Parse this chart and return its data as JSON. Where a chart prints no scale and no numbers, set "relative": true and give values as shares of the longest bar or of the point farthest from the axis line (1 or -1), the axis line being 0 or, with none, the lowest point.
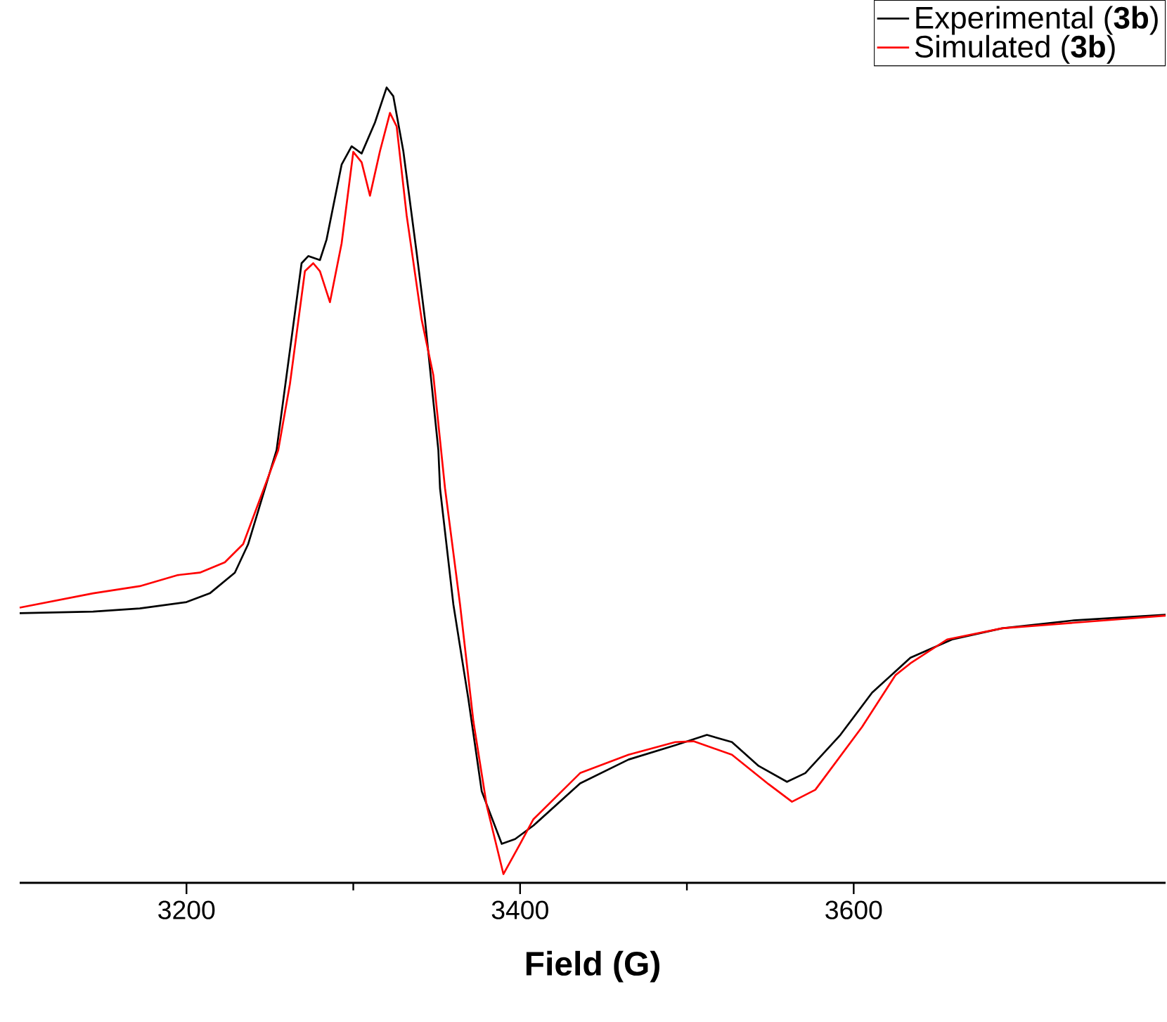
{
  "chart_data": {
    "type": "line",
    "relative": true,
    "xlabel": "Field (G)",
    "xlim": [
      3100,
      3787
    ],
    "xticks": [
      3200,
      3400,
      3600
    ],
    "grid": false,
    "legend": "top right",
    "marker": "none",
    "line_style": "solid",
    "series": [
      {
        "name": "Experimental (**3b**)",
        "color": "#000000",
        "x": [
          3100,
          3144,
          3172,
          3200,
          3214,
          3229,
          3237,
          3254,
          3269,
          3273,
          3280,
          3284,
          3293,
          3299,
          3305,
          3313,
          3320,
          3324,
          3330,
          3338,
          3343,
          3351,
          3352,
          3360,
          3369,
          3377,
          3389,
          3397,
          3408,
          3436,
          3465,
          3493,
          3512,
          3527,
          3543,
          3560,
          3571,
          3592,
          3611,
          3634,
          3659,
          3689,
          3732,
          3787
        ],
        "values": [
          0.339,
          0.341,
          0.345,
          0.353,
          0.364,
          0.39,
          0.426,
          0.544,
          0.779,
          0.788,
          0.783,
          0.809,
          0.903,
          0.926,
          0.917,
          0.956,
          1,
          0.989,
          0.92,
          0.792,
          0.708,
          0.544,
          0.496,
          0.35,
          0.231,
          0.115,
          0.049,
          0.055,
          0.072,
          0.125,
          0.155,
          0.173,
          0.186,
          0.177,
          0.147,
          0.127,
          0.138,
          0.186,
          0.239,
          0.283,
          0.306,
          0.32,
          0.33,
          0.337
        ]
      },
      {
        "name": "Simulated (**3b**)",
        "color": "#ff0000",
        "x": [
          3100,
          3144,
          3172,
          3195,
          3208,
          3223,
          3234,
          3255,
          3262,
          3271,
          3276,
          3280,
          3286,
          3293,
          3300,
          3305,
          3310,
          3316,
          3322,
          3326,
          3332,
          3341,
          3348,
          3355,
          3364,
          3372,
          3380,
          3390,
          3400,
          3408,
          3436,
          3465,
          3493,
          3504,
          3527,
          3549,
          3563,
          3577,
          3605,
          3625,
          3634,
          3656,
          3689,
          3787
        ],
        "values": [
          0.346,
          0.364,
          0.373,
          0.387,
          0.39,
          0.403,
          0.426,
          0.544,
          0.627,
          0.769,
          0.779,
          0.769,
          0.73,
          0.804,
          0.919,
          0.906,
          0.864,
          0.92,
          0.968,
          0.951,
          0.839,
          0.708,
          0.638,
          0.496,
          0.35,
          0.203,
          0.097,
          0.011,
          0.049,
          0.08,
          0.138,
          0.161,
          0.177,
          0.178,
          0.161,
          0.124,
          0.102,
          0.117,
          0.196,
          0.261,
          0.276,
          0.306,
          0.32,
          0.336
        ]
      }
    ]
  }
}
